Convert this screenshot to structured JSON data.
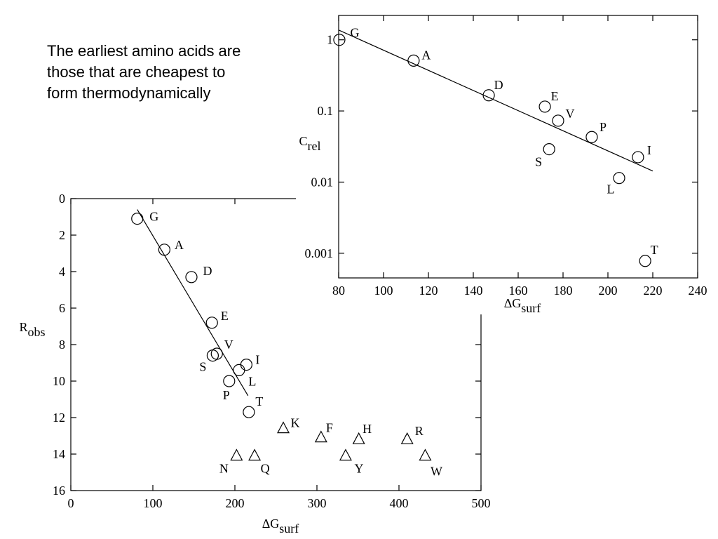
{
  "text": {
    "lines": [
      "The earliest amino acids are",
      "those that are cheapest to",
      "form thermodynamically"
    ]
  },
  "chart_data": [
    {
      "type": "scatter",
      "x_label": {
        "text": "ΔG",
        "sub": "surf"
      },
      "y_label": {
        "text": "R",
        "sub": "obs"
      },
      "xlim": [
        0,
        500
      ],
      "xticks": [
        0,
        100,
        200,
        300,
        400,
        500
      ],
      "ylim": [
        0,
        16
      ],
      "yticks": [
        0,
        2,
        4,
        6,
        8,
        10,
        12,
        14,
        16
      ],
      "y_inverted": true,
      "series": [
        {
          "marker": "circle",
          "labels": [
            "G",
            "A",
            "D",
            "E",
            "V",
            "S",
            "I",
            "L",
            "P",
            "T"
          ],
          "x": [
            81,
            114,
            147,
            172,
            178,
            173,
            214,
            205,
            193,
            217
          ],
          "values": [
            1.1,
            2.8,
            4.3,
            6.8,
            8.5,
            8.6,
            9.1,
            9.4,
            10.0,
            11.7
          ]
        },
        {
          "marker": "triangle",
          "labels": [
            "K",
            "F",
            "H",
            "R",
            "N",
            "Q",
            "Y",
            "W"
          ],
          "x": [
            259,
            305,
            351,
            410,
            202,
            224,
            335,
            432
          ],
          "values": [
            12.6,
            13.1,
            13.2,
            13.2,
            14.1,
            14.1,
            14.1,
            14.1
          ]
        },
        {
          "marker": "line",
          "x": [
            81,
            216
          ],
          "values": [
            0.6,
            10.8
          ]
        }
      ]
    },
    {
      "type": "scatter",
      "x_label": {
        "text": "ΔG",
        "sub": "surf"
      },
      "y_label": {
        "text": "C",
        "sub": "rel"
      },
      "xlim": [
        80,
        240
      ],
      "xticks": [
        80,
        100,
        120,
        140,
        160,
        180,
        200,
        220,
        240
      ],
      "ylim": [
        0.00045,
        2.2
      ],
      "yticks": [
        0.001,
        0.01,
        0.1,
        1
      ],
      "y_log": true,
      "series": [
        {
          "marker": "circle",
          "labels": [
            "G",
            "A",
            "D",
            "E",
            "V",
            "P",
            "S",
            "I",
            "L",
            "T"
          ],
          "x": [
            80.3,
            113.4,
            146.9,
            171.9,
            177.8,
            192.8,
            173.8,
            213.4,
            205,
            216.6
          ],
          "values": [
            1.0,
            0.51,
            0.166,
            0.115,
            0.073,
            0.043,
            0.029,
            0.0224,
            0.0114,
            0.00078
          ]
        },
        {
          "marker": "line",
          "x": [
            80,
            220
          ],
          "values": [
            1.37,
            0.0143
          ]
        }
      ]
    }
  ]
}
